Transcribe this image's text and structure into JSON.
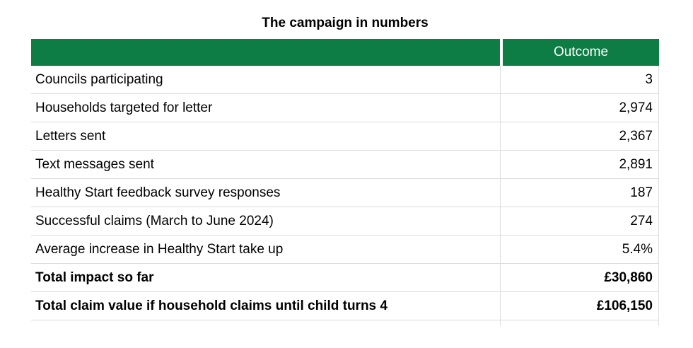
{
  "title": "The campaign in numbers",
  "table": {
    "header": {
      "label_col": "",
      "outcome_col": "Outcome"
    },
    "rows": [
      {
        "label": "Councils participating",
        "value": "3"
      },
      {
        "label": "Households targeted for letter",
        "value": "2,974"
      },
      {
        "label": "Letters sent",
        "value": "2,367"
      },
      {
        "label": "Text messages sent",
        "value": "2,891"
      },
      {
        "label": "Healthy Start feedback survey responses",
        "value": "187"
      },
      {
        "label": "Successful claims (March to June 2024)",
        "value": "274"
      },
      {
        "label": "Average increase in Healthy Start take up",
        "value": "5.4%"
      },
      {
        "label": "Total impact so far",
        "value": "£30,860"
      },
      {
        "label": "Total claim value if household claims until child turns 4",
        "value": "£106,150"
      }
    ]
  },
  "colors": {
    "header_green": "#0d7c45",
    "header_text": "#ffffff",
    "row_border": "#dcdcdc",
    "body_text": "#000000"
  }
}
